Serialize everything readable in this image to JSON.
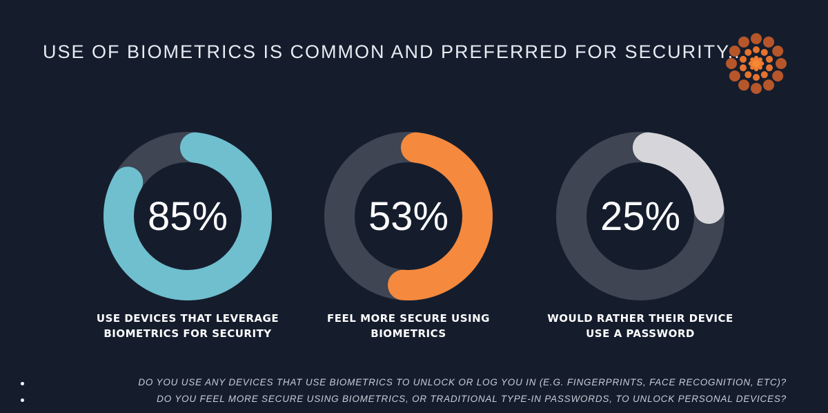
{
  "slide": {
    "title": "USE OF BIOMETRICS IS COMMON AND PREFERRED FOR SECURITY...",
    "logo_icon": "sunburst-dots-logo"
  },
  "chart_data": {
    "type": "donut",
    "track_color": "#3f4552",
    "items": [
      {
        "value": 85,
        "label": "85%",
        "caption_line1": "USE DEVICES THAT LEVERAGE",
        "caption_line2": "BIOMETRICS FOR SECURITY",
        "color": "#6fbfcf"
      },
      {
        "value": 53,
        "label": "53%",
        "caption_line1": "FEEL MORE SECURE USING",
        "caption_line2": "BIOMETRICS",
        "color": "#f5893d"
      },
      {
        "value": 25,
        "label": "25%",
        "caption_line1": "WOULD RATHER THEIR DEVICE",
        "caption_line2": "USE A PASSWORD",
        "color": "#d6d6da"
      }
    ]
  },
  "footnotes": [
    "DO YOU USE ANY DEVICES THAT USE BIOMETRICS TO UNLOCK OR LOG YOU IN (E.G. FINGERPRINTS, FACE RECOGNITION, ETC)?",
    "DO YOU FEEL MORE SECURE USING BIOMETRICS, OR TRADITIONAL TYPE-IN PASSWORDS, TO UNLOCK PERSONAL DEVICES?"
  ]
}
